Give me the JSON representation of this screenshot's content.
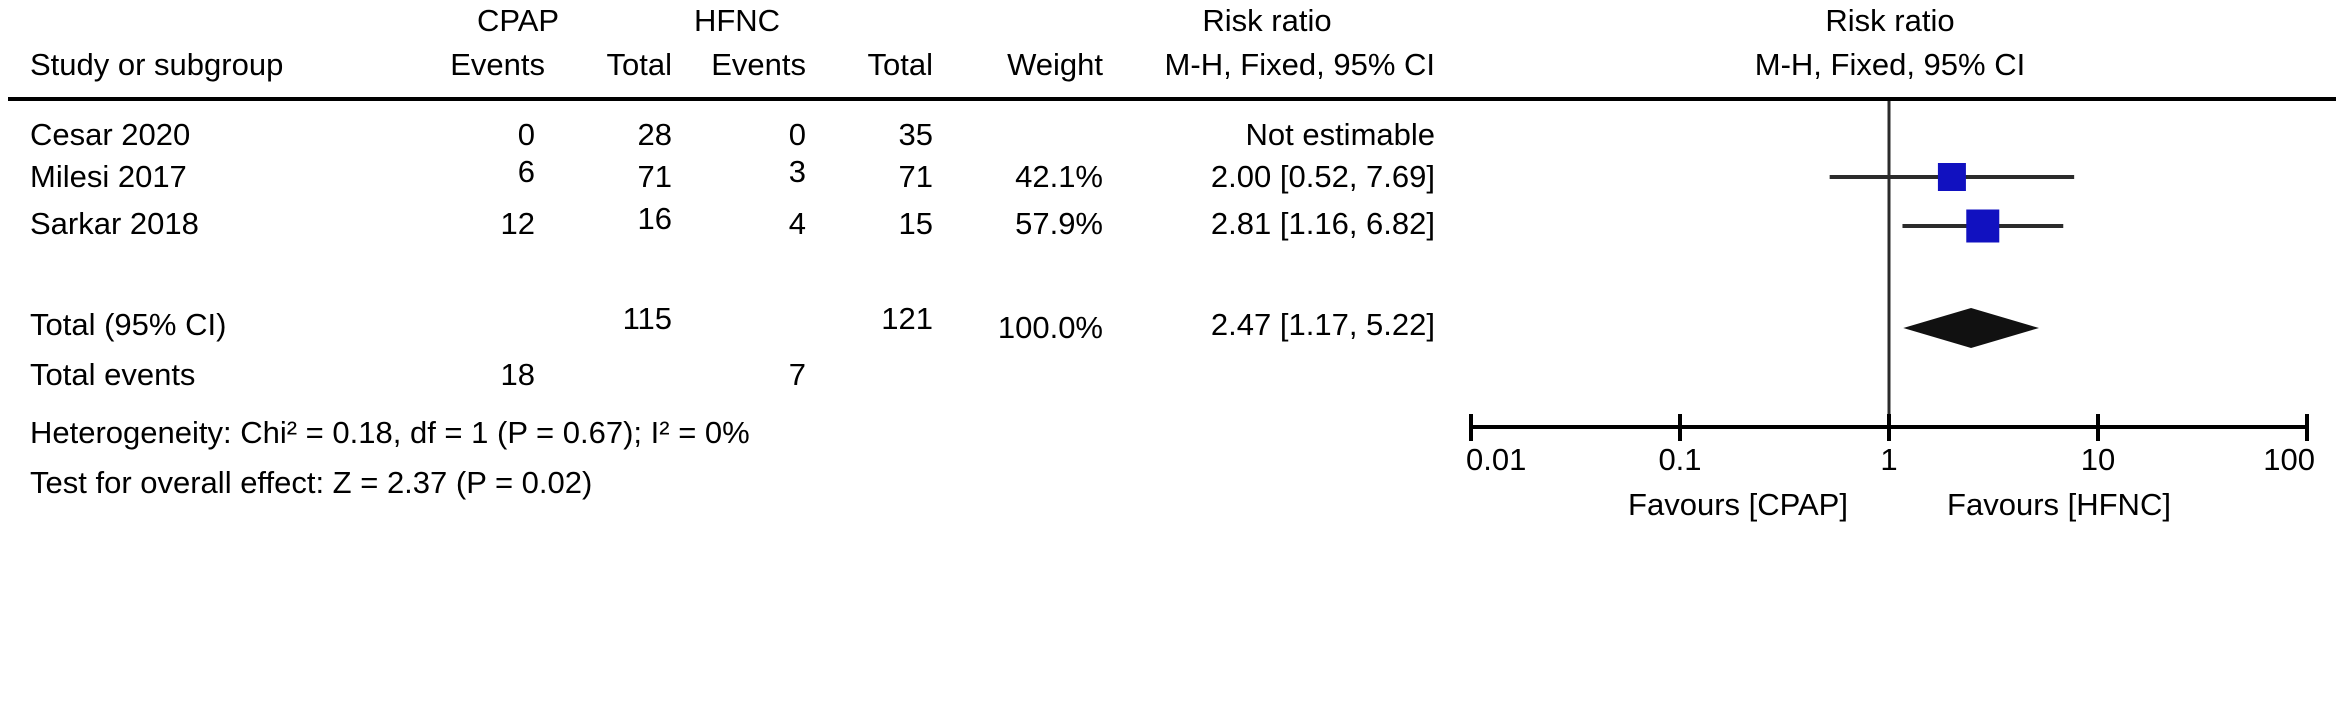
{
  "figure": {
    "group_headers": {
      "cpap": "CPAP",
      "hfnc": "HFNC",
      "risk_ratio_table": "Risk ratio",
      "risk_ratio_plot": "Risk ratio"
    },
    "col_headers": {
      "study": "Study or subgroup",
      "cpap_events": "Events",
      "cpap_total": "Total",
      "hfnc_events": "Events",
      "hfnc_total": "Total",
      "weight": "Weight",
      "mh_table": "M-H, Fixed, 95% CI",
      "mh_plot": "M-H, Fixed, 95% CI"
    },
    "rows": [
      {
        "study": "Cesar 2020",
        "cpap_events": "0",
        "cpap_total": "28",
        "hfnc_events": "0",
        "hfnc_total": "35",
        "weight": "",
        "ci": "Not estimable"
      },
      {
        "study": "Milesi 2017",
        "cpap_events": "6",
        "cpap_total": "71",
        "hfnc_events": "3",
        "hfnc_total": "71",
        "weight": "42.1%",
        "ci": "2.00 [0.52, 7.69]"
      },
      {
        "study": "Sarkar 2018",
        "cpap_events": "12",
        "cpap_total": "16",
        "hfnc_events": "4",
        "hfnc_total": "15",
        "weight": "57.9%",
        "ci": "2.81 [1.16, 6.82]"
      }
    ],
    "total_row": {
      "label": "Total (95% CI)",
      "cpap_total": "115",
      "hfnc_total": "121",
      "weight": "100.0%",
      "ci": "2.47 [1.17, 5.22]"
    },
    "total_events": {
      "label": "Total events",
      "cpap_events": "18",
      "hfnc_events": "7"
    },
    "heterogeneity": "Heterogeneity: Chi² = 0.18, df = 1 (P = 0.67); I² = 0%",
    "overall_effect": "Test for overall effect: Z = 2.37 (P = 0.02)"
  },
  "chart_data": {
    "type": "forest",
    "effect_measure": "Risk ratio",
    "method": "M-H, Fixed, 95% CI",
    "x_scale": "log10",
    "xlim": [
      0.01,
      100
    ],
    "x_ticks": [
      0.01,
      0.1,
      1,
      10,
      100
    ],
    "x_tick_labels": [
      "0.01",
      "0.1",
      "1",
      "10",
      "100"
    ],
    "null_line_at": 1,
    "favours_left": "Favours [CPAP]",
    "favours_right": "Favours [HFNC]",
    "marker_color": "#1111c0",
    "line_color": "#2b2b2b",
    "diamond_color": "#111111",
    "studies": [
      {
        "name": "Cesar 2020",
        "rr": null,
        "ci_low": null,
        "ci_high": null,
        "weight_pct": null,
        "note": "Not estimable"
      },
      {
        "name": "Milesi 2017",
        "rr": 2.0,
        "ci_low": 0.52,
        "ci_high": 7.69,
        "weight_pct": 42.1
      },
      {
        "name": "Sarkar 2018",
        "rr": 2.81,
        "ci_low": 1.16,
        "ci_high": 6.82,
        "weight_pct": 57.9
      }
    ],
    "total": {
      "label": "Total (95% CI)",
      "rr": 2.47,
      "ci_low": 1.17,
      "ci_high": 5.22,
      "weight_pct": 100.0
    }
  }
}
